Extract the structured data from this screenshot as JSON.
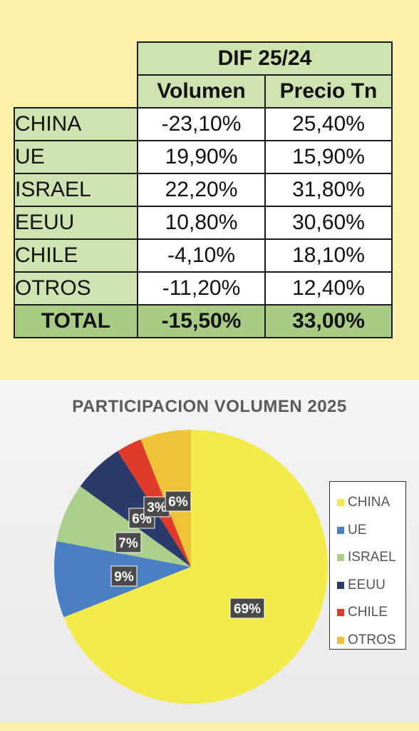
{
  "table": {
    "header": "DIF 25/24",
    "columns": [
      "Volumen",
      "Precio Tn"
    ],
    "rows": [
      {
        "country": "CHINA",
        "volumen": "-23,10%",
        "precio": "25,40%"
      },
      {
        "country": "UE",
        "volumen": "19,90%",
        "precio": "15,90%"
      },
      {
        "country": "ISRAEL",
        "volumen": "22,20%",
        "precio": "31,80%"
      },
      {
        "country": "EEUU",
        "volumen": "10,80%",
        "precio": "30,60%"
      },
      {
        "country": "CHILE",
        "volumen": "-4,10%",
        "precio": "18,10%"
      },
      {
        "country": "OTROS",
        "volumen": "-11,20%",
        "precio": "12,40%"
      }
    ],
    "total": {
      "label": "TOTAL",
      "volumen": "-15,50%",
      "precio": "33,00%"
    }
  },
  "chart_data": {
    "type": "pie",
    "title": "PARTICIPACION VOLUMEN 2025",
    "categories": [
      "CHINA",
      "UE",
      "ISRAEL",
      "EEUU",
      "CHILE",
      "OTROS"
    ],
    "values": [
      69,
      9,
      7,
      6,
      3,
      6
    ],
    "labels": [
      "69%",
      "9%",
      "7%",
      "6%",
      "3%",
      "6%"
    ],
    "colors": [
      "#f2ea4a",
      "#4a7fc4",
      "#a9cf8a",
      "#2a3a6b",
      "#e03a2a",
      "#efc23a"
    ],
    "legend_position": "right"
  }
}
